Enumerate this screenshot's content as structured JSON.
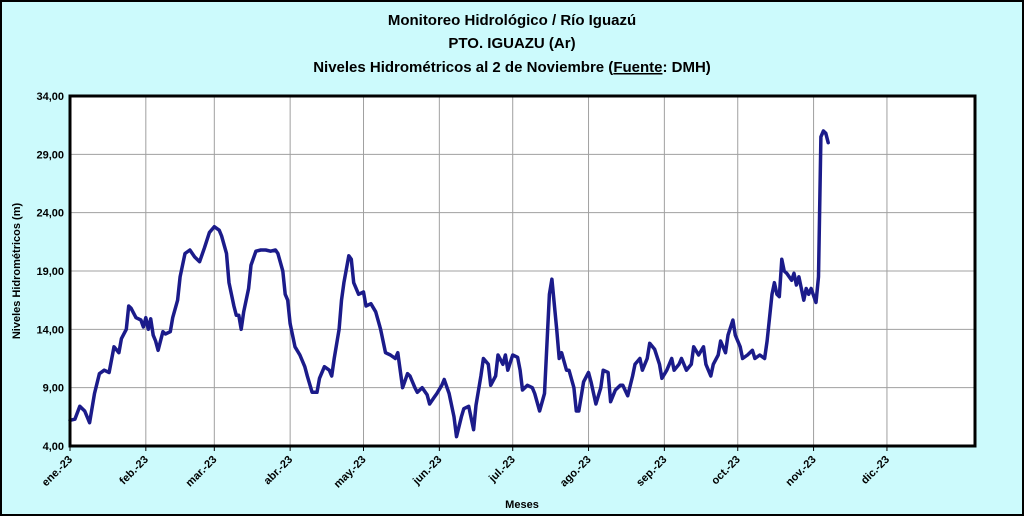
{
  "chart_data": {
    "type": "line",
    "title": [
      "Monitoreo Hidrológico / Río Iguazú",
      "PTO.  IGUAZU (Ar)"
    ],
    "subtitle_parts": [
      "Niveles Hidrométricos  al 2 de Noviembre (",
      "Fuente",
      ": DMH)"
    ],
    "ylabel": "Niveles Hidrométricos (m)",
    "xlabel": "Meses",
    "color": "#1b1b8a",
    "grid": true,
    "xlim": [
      0,
      370
    ],
    "ylim": [
      4,
      34
    ],
    "yticks": [
      {
        "value": 4,
        "label": "4,00"
      },
      {
        "value": 9,
        "label": "9,00"
      },
      {
        "value": 14,
        "label": "14,00"
      },
      {
        "value": 19,
        "label": "19,00"
      },
      {
        "value": 24,
        "label": "24,00"
      },
      {
        "value": 29,
        "label": "29,00"
      },
      {
        "value": 34,
        "label": "34,00"
      }
    ],
    "xticks": [
      {
        "value": 0,
        "label": "ene.-23"
      },
      {
        "value": 31,
        "label": "feb.-23"
      },
      {
        "value": 59,
        "label": "mar.-23"
      },
      {
        "value": 90,
        "label": "abr.-23"
      },
      {
        "value": 120,
        "label": "may.-23"
      },
      {
        "value": 151,
        "label": "jun.-23"
      },
      {
        "value": 181,
        "label": "jul.-23"
      },
      {
        "value": 212,
        "label": "ago.-23"
      },
      {
        "value": 243,
        "label": "sep.-23"
      },
      {
        "value": 273,
        "label": "oct.-23"
      },
      {
        "value": 304,
        "label": "nov.-23"
      },
      {
        "value": 334,
        "label": "dic.-23"
      }
    ],
    "x": [
      0,
      2,
      4,
      6,
      8,
      10,
      12,
      14,
      16,
      18,
      20,
      21,
      23,
      24,
      25,
      27,
      29,
      30,
      31,
      32,
      33,
      34,
      35,
      36,
      38,
      39,
      41,
      42,
      44,
      45,
      47,
      49,
      51,
      53,
      55,
      57,
      59,
      61,
      62,
      64,
      65,
      67,
      68,
      69,
      70,
      71,
      73,
      74,
      76,
      78,
      80,
      82,
      84,
      85,
      87,
      88,
      89,
      90,
      92,
      94,
      96,
      97,
      99,
      101,
      102,
      104,
      106,
      107,
      108,
      110,
      111,
      112,
      114,
      115,
      116,
      118,
      120,
      121,
      123,
      125,
      127,
      129,
      131,
      133,
      134,
      135,
      136,
      138,
      139,
      141,
      142,
      144,
      146,
      147,
      149,
      150,
      152,
      153,
      155,
      157,
      158,
      160,
      161,
      163,
      165,
      166,
      168,
      169,
      171,
      172,
      174,
      175,
      177,
      178,
      179,
      181,
      183,
      184,
      185,
      187,
      189,
      190,
      192,
      194,
      196,
      197,
      199,
      200,
      201,
      203,
      204,
      206,
      207,
      208,
      210,
      212,
      213,
      215,
      217,
      218,
      220,
      221,
      223,
      225,
      226,
      228,
      230,
      231,
      233,
      234,
      236,
      237,
      239,
      241,
      242,
      244,
      246,
      247,
      249,
      250,
      252,
      254,
      255,
      257,
      259,
      260,
      262,
      263,
      265,
      266,
      268,
      269,
      271,
      272,
      274,
      275,
      277,
      279,
      280,
      282,
      284,
      285,
      287,
      288,
      289,
      290,
      291,
      292,
      293,
      295,
      296,
      297,
      298,
      300,
      301,
      302,
      303,
      305,
      306,
      307,
      308,
      309,
      310
    ],
    "values": [
      6.2,
      6.3,
      7.4,
      7.0,
      6.0,
      8.5,
      10.2,
      10.5,
      10.3,
      12.5,
      12.0,
      13.2,
      14.0,
      16.0,
      15.8,
      15.0,
      14.8,
      14.2,
      15.0,
      14.0,
      14.9,
      13.5,
      13.0,
      12.2,
      13.8,
      13.6,
      13.8,
      15.0,
      16.5,
      18.5,
      20.5,
      20.8,
      20.2,
      19.8,
      21.0,
      22.3,
      22.8,
      22.5,
      22.0,
      20.5,
      18.0,
      16.0,
      15.2,
      15.2,
      14.0,
      15.5,
      17.5,
      19.5,
      20.7,
      20.8,
      20.8,
      20.7,
      20.8,
      20.5,
      19.0,
      17.0,
      16.5,
      14.5,
      12.5,
      11.8,
      10.8,
      10.0,
      8.6,
      8.6,
      9.8,
      10.8,
      10.5,
      10.0,
      11.5,
      14.0,
      16.5,
      18.0,
      20.3,
      20.0,
      18.0,
      17.0,
      17.2,
      16.0,
      16.2,
      15.5,
      14.0,
      12.0,
      11.8,
      11.5,
      12.0,
      10.5,
      9.0,
      10.2,
      10.0,
      9.0,
      8.6,
      9.0,
      8.4,
      7.6,
      8.2,
      8.5,
      9.2,
      9.7,
      8.5,
      6.5,
      4.8,
      6.5,
      7.2,
      7.4,
      5.4,
      7.5,
      10.0,
      11.5,
      11.0,
      9.2,
      10.0,
      11.8,
      11.0,
      11.8,
      10.5,
      11.8,
      11.6,
      10.5,
      8.8,
      9.2,
      9.0,
      8.5,
      7.0,
      8.5,
      17.0,
      18.3,
      14.0,
      11.5,
      12.0,
      10.5,
      10.5,
      9.0,
      7.0,
      7.0,
      9.5,
      10.3,
      9.5,
      7.6,
      9.0,
      10.5,
      10.3,
      7.8,
      8.8,
      9.2,
      9.2,
      8.3,
      10.0,
      11.0,
      11.5,
      10.5,
      11.5,
      12.8,
      12.3,
      11.0,
      9.8,
      10.5,
      11.5,
      10.5,
      11.0,
      11.5,
      10.5,
      11.0,
      12.5,
      11.8,
      12.5,
      11.0,
      10.0,
      11.0,
      11.8,
      13.0,
      12.0,
      13.5,
      14.8,
      13.5,
      12.5,
      11.5,
      11.8,
      12.2,
      11.5,
      11.8,
      11.5,
      13.0,
      17.0,
      18.0,
      17.0,
      16.8,
      20.0,
      19.0,
      18.8,
      18.2,
      18.8,
      17.8,
      18.5,
      16.5,
      17.5,
      17.0,
      17.5,
      16.3,
      18.5,
      30.5,
      31.0,
      30.8,
      30.0
    ]
  }
}
